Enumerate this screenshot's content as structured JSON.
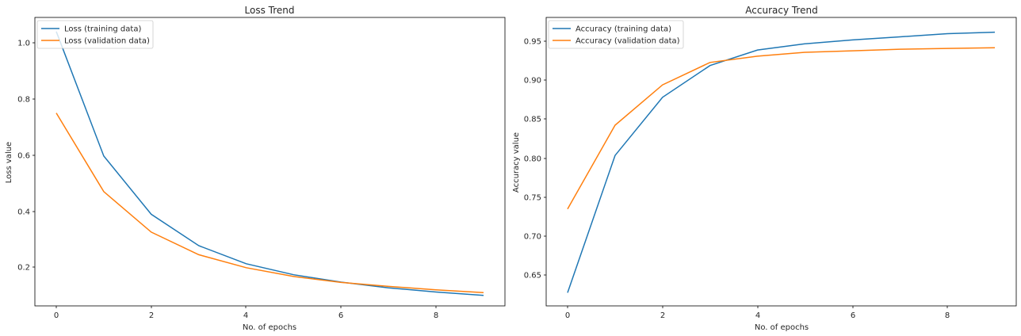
{
  "colors": {
    "training": "#1f77b4",
    "validation": "#ff7f0e",
    "axis": "#000000",
    "legend_border": "#cccccc"
  },
  "chart_data": [
    {
      "type": "line",
      "title": "Loss Trend",
      "xlabel": "No. of epochs",
      "ylabel": "Loss value",
      "xlim": [
        -0.45,
        9.45
      ],
      "ylim": [
        0.07,
        1.09
      ],
      "xticks": [
        0,
        2,
        4,
        6,
        8
      ],
      "xtick_labels": [
        "0",
        "2",
        "4",
        "6",
        "8"
      ],
      "yticks": [
        0.2,
        0.4,
        0.6,
        0.8,
        1.0
      ],
      "ytick_labels": [
        "0.2",
        "0.4",
        "0.6",
        "0.8",
        "1.0"
      ],
      "grid": false,
      "legend_position": "upper left",
      "x": [
        0,
        1,
        2,
        3,
        4,
        5,
        6,
        7,
        8,
        9
      ],
      "series": [
        {
          "name": "Loss (training data)",
          "color_key": "training",
          "values": [
            1.04,
            0.6,
            0.394,
            0.283,
            0.219,
            0.18,
            0.154,
            0.134,
            0.119,
            0.107
          ]
        },
        {
          "name": "Loss (validation data)",
          "color_key": "validation",
          "values": [
            0.752,
            0.474,
            0.331,
            0.251,
            0.205,
            0.174,
            0.153,
            0.139,
            0.127,
            0.117
          ]
        }
      ]
    },
    {
      "type": "line",
      "title": "Accuracy Trend",
      "xlabel": "No. of epochs",
      "ylabel": "Accuracy value",
      "xlim": [
        -0.45,
        9.45
      ],
      "ylim": [
        0.609,
        0.981
      ],
      "xticks": [
        0,
        2,
        4,
        6,
        8
      ],
      "xtick_labels": [
        "0",
        "2",
        "4",
        "6",
        "8"
      ],
      "yticks": [
        0.65,
        0.7,
        0.75,
        0.8,
        0.85,
        0.9,
        0.95
      ],
      "ytick_labels": [
        "0.65",
        "0.70",
        "0.75",
        "0.80",
        "0.85",
        "0.90",
        "0.95"
      ],
      "grid": false,
      "legend_position": "upper left",
      "x": [
        0,
        1,
        2,
        3,
        4,
        5,
        6,
        7,
        8,
        9
      ],
      "series": [
        {
          "name": "Accuracy (training data)",
          "color_key": "training",
          "values": [
            0.626,
            0.803,
            0.878,
            0.919,
            0.939,
            0.947,
            0.952,
            0.956,
            0.96,
            0.962
          ]
        },
        {
          "name": "Accuracy (validation data)",
          "color_key": "validation",
          "values": [
            0.734,
            0.842,
            0.894,
            0.923,
            0.931,
            0.936,
            0.938,
            0.94,
            0.941,
            0.942
          ]
        }
      ]
    }
  ]
}
